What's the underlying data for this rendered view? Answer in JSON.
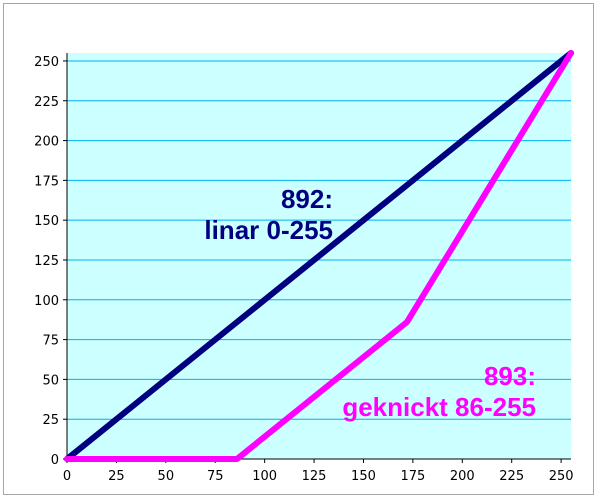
{
  "chart_data": {
    "type": "line",
    "title": "",
    "xlabel": "",
    "ylabel": "",
    "xlim": [
      0,
      255
    ],
    "ylim": [
      0,
      255
    ],
    "x_ticks": [
      "0",
      "25",
      "50",
      "75",
      "100",
      "125",
      "150",
      "175",
      "200",
      "225",
      "250"
    ],
    "y_ticks": [
      "0",
      "25",
      "50",
      "75",
      "100",
      "125",
      "150",
      "175",
      "200",
      "225",
      "250"
    ],
    "grid": "horizontal",
    "plot_background": "#ccffff",
    "series": [
      {
        "color": "#000080",
        "points": [
          [
            0,
            0
          ],
          [
            255,
            255
          ]
        ]
      },
      {
        "color": "#ff00ff",
        "points": [
          [
            0,
            0
          ],
          [
            86,
            0
          ],
          [
            172,
            86
          ],
          [
            255,
            255
          ]
        ]
      }
    ],
    "annotations": [
      {
        "lines": [
          "892:",
          "linar 0-255"
        ],
        "color": "#000080"
      },
      {
        "lines": [
          "893:",
          "geknickt 86-255"
        ],
        "color": "#ff00ff"
      }
    ]
  }
}
